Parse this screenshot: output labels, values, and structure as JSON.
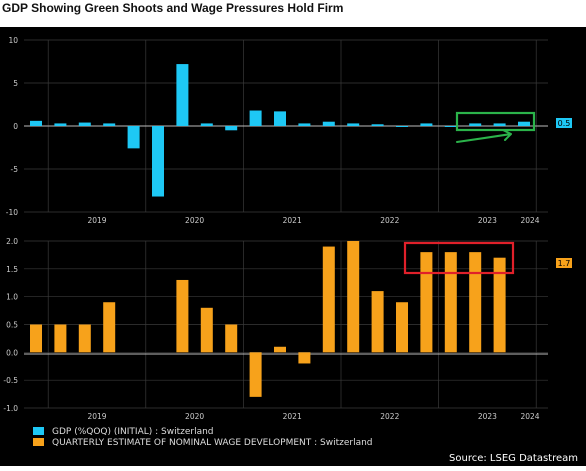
{
  "page_title": "GDP Showing Green Shoots and Wage Pressures Hold Firm",
  "source": "Source: LSEG Datastream",
  "colors": {
    "background": "#000000",
    "gdp_bar": "#1ec8f5",
    "wage_bar": "#f7a21b",
    "axis_text": "#cccccc",
    "grid": "#3a3a3a",
    "highlight_green": "#2bb34a",
    "highlight_red": "#e0202a"
  },
  "chart_data": [
    {
      "type": "bar",
      "x": [
        "2018-Q4",
        "2019-Q1",
        "2019-Q2",
        "2019-Q3",
        "2019-Q4",
        "2020-Q1",
        "2020-Q2",
        "2020-Q3",
        "2020-Q4",
        "2021-Q1",
        "2021-Q2",
        "2021-Q3",
        "2021-Q4",
        "2022-Q1",
        "2022-Q2",
        "2022-Q3",
        "2022-Q4",
        "2023-Q1",
        "2023-Q2",
        "2023-Q3",
        "2023-Q4"
      ],
      "series": [
        {
          "name": "GDP (%QOQ) (INITIAL) : Switzerland",
          "color": "#1ec8f5",
          "values": [
            0.6,
            0.3,
            0.4,
            0.3,
            -2.6,
            -8.2,
            7.2,
            0.3,
            -0.5,
            1.8,
            1.7,
            0.3,
            0.5,
            0.3,
            0.2,
            0.0,
            0.3,
            0.0,
            0.3,
            0.3,
            0.5
          ]
        }
      ],
      "ylim": [
        -10,
        10
      ],
      "y_ticks": [
        "10",
        "5",
        "0",
        "-5",
        "-10"
      ],
      "x_ticks": [
        "2019",
        "2020",
        "2021",
        "2022",
        "2023",
        "2024"
      ],
      "last_value_label": "0.5",
      "grid": true
    },
    {
      "type": "bar",
      "x": [
        "2018-Q4",
        "2019-Q1",
        "2019-Q2",
        "2019-Q3",
        "2019-Q4",
        "2020-Q1",
        "2020-Q2",
        "2020-Q3",
        "2020-Q4",
        "2021-Q1",
        "2021-Q2",
        "2021-Q3",
        "2021-Q4",
        "2022-Q1",
        "2022-Q2",
        "2022-Q3",
        "2022-Q4",
        "2023-Q1",
        "2023-Q2",
        "2023-Q3",
        "2023-Q4"
      ],
      "series": [
        {
          "name": "QUARTERLY ESTIMATE OF NOMINAL WAGE DEVELOPMENT : Switzerland",
          "color": "#f7a21b",
          "values": [
            0.5,
            0.5,
            0.5,
            0.9,
            null,
            null,
            1.3,
            0.8,
            0.5,
            -0.8,
            0.1,
            -0.2,
            1.9,
            2.0,
            1.1,
            0.9,
            1.8,
            1.8,
            1.8,
            1.7,
            null
          ]
        }
      ],
      "ylim": [
        -1.0,
        2.0
      ],
      "y_ticks": [
        "2.0",
        "1.5",
        "1.0",
        "0.5",
        "0.0",
        "-0.5",
        "-1.0"
      ],
      "x_ticks": [
        "2019",
        "2020",
        "2021",
        "2022",
        "2023",
        "2024"
      ],
      "last_value_label": "1.7",
      "grid": true
    }
  ]
}
